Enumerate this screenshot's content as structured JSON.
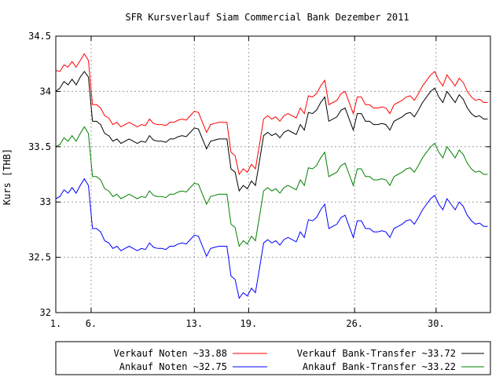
{
  "chart_data": {
    "type": "line",
    "title": "SFR Kursverlauf Siam Commercial Bank Dezember 2011",
    "xlabel": "",
    "ylabel": "Kurs [THB]",
    "xlim": [
      1,
      33
    ],
    "ylim": [
      32,
      34.5
    ],
    "grid": true,
    "legend_position": "bottom",
    "x_ticks": [
      {
        "value": 1,
        "label": "1."
      },
      {
        "value": 3.6,
        "label": "6."
      },
      {
        "value": 11.2,
        "label": "13."
      },
      {
        "value": 15.2,
        "label": "19."
      },
      {
        "value": 23.0,
        "label": "26."
      },
      {
        "value": 29.0,
        "label": "30."
      }
    ],
    "y_ticks": [
      {
        "value": 32,
        "label": "32"
      },
      {
        "value": 32.5,
        "label": "32.5"
      },
      {
        "value": 33,
        "label": "33"
      },
      {
        "value": 33.5,
        "label": "33.5"
      },
      {
        "value": 34,
        "label": "34"
      },
      {
        "value": 34.5,
        "label": "34.5"
      }
    ],
    "x": [
      1,
      1.3,
      1.6,
      1.9,
      2.2,
      2.5,
      2.8,
      3.1,
      3.4,
      3.7,
      4.0,
      4.3,
      4.6,
      4.9,
      5.2,
      5.5,
      5.8,
      6.1,
      6.4,
      6.7,
      7.0,
      7.3,
      7.6,
      7.9,
      8.2,
      8.5,
      8.8,
      9.1,
      9.4,
      9.7,
      10.0,
      10.3,
      10.6,
      10.9,
      11.2,
      11.5,
      11.8,
      12.1,
      12.4,
      12.7,
      13.0,
      13.3,
      13.6,
      13.9,
      14.2,
      14.5,
      14.8,
      15.1,
      15.4,
      15.7,
      16.0,
      16.3,
      16.6,
      16.9,
      17.2,
      17.5,
      17.8,
      18.1,
      18.4,
      18.7,
      19.0,
      19.3,
      19.6,
      19.9,
      20.2,
      20.5,
      20.8,
      21.1,
      21.4,
      21.7,
      22.0,
      22.3,
      22.6,
      22.9,
      23.2,
      23.5,
      23.8,
      24.1,
      24.4,
      24.7,
      25.0,
      25.3,
      25.6,
      25.9,
      26.2,
      26.5,
      26.8,
      27.1,
      27.4,
      27.7,
      28.0,
      28.3,
      28.6,
      28.9,
      29.2,
      29.5,
      29.8,
      30.1,
      30.4,
      30.7,
      31.0,
      31.3,
      31.6,
      31.9,
      32.2,
      32.5,
      32.8
    ],
    "series": [
      {
        "name": "Verkauf Noten ~33.88",
        "color": "#ff0000",
        "values": [
          34.19,
          34.18,
          34.24,
          34.22,
          34.27,
          34.22,
          34.28,
          34.34,
          34.28,
          33.88,
          33.88,
          33.85,
          33.78,
          33.76,
          33.7,
          33.72,
          33.68,
          33.7,
          33.72,
          33.7,
          33.68,
          33.7,
          33.69,
          33.75,
          33.71,
          33.7,
          33.7,
          33.69,
          33.72,
          33.72,
          33.74,
          33.75,
          33.74,
          33.78,
          33.82,
          33.81,
          33.72,
          33.63,
          33.7,
          33.71,
          33.72,
          33.72,
          33.72,
          33.45,
          33.42,
          33.25,
          33.3,
          33.27,
          33.34,
          33.3,
          33.52,
          33.75,
          33.78,
          33.75,
          33.77,
          33.73,
          33.78,
          33.8,
          33.78,
          33.76,
          33.85,
          33.8,
          33.96,
          33.95,
          33.98,
          34.05,
          34.1,
          33.88,
          33.9,
          33.92,
          33.98,
          34.0,
          33.9,
          33.8,
          33.95,
          33.95,
          33.88,
          33.88,
          33.85,
          33.85,
          33.86,
          33.85,
          33.8,
          33.88,
          33.9,
          33.92,
          33.95,
          33.96,
          33.92,
          33.98,
          34.05,
          34.1,
          34.15,
          34.18,
          34.1,
          34.05,
          34.15,
          34.1,
          34.05,
          34.12,
          34.08,
          34.0,
          33.95,
          33.92,
          33.93,
          33.9,
          33.9
        ]
      },
      {
        "name": "Verkauf Bank-Transfer ~33.72",
        "color": "#000000",
        "values": [
          34.0,
          34.03,
          34.09,
          34.06,
          34.11,
          34.06,
          34.13,
          34.18,
          34.13,
          33.73,
          33.73,
          33.7,
          33.62,
          33.6,
          33.55,
          33.57,
          33.53,
          33.55,
          33.57,
          33.55,
          33.53,
          33.55,
          33.54,
          33.6,
          33.56,
          33.55,
          33.55,
          33.54,
          33.57,
          33.57,
          33.59,
          33.6,
          33.59,
          33.63,
          33.67,
          33.66,
          33.57,
          33.48,
          33.55,
          33.56,
          33.57,
          33.57,
          33.57,
          33.3,
          33.27,
          33.1,
          33.15,
          33.12,
          33.19,
          33.15,
          33.37,
          33.6,
          33.63,
          33.6,
          33.62,
          33.58,
          33.63,
          33.65,
          33.63,
          33.61,
          33.7,
          33.65,
          33.81,
          33.8,
          33.83,
          33.9,
          33.95,
          33.73,
          33.75,
          33.77,
          33.83,
          33.85,
          33.75,
          33.65,
          33.8,
          33.8,
          33.73,
          33.73,
          33.7,
          33.7,
          33.71,
          33.7,
          33.65,
          33.73,
          33.75,
          33.77,
          33.8,
          33.81,
          33.77,
          33.83,
          33.9,
          33.95,
          34.0,
          34.03,
          33.95,
          33.9,
          34.0,
          33.95,
          33.9,
          33.97,
          33.93,
          33.85,
          33.8,
          33.77,
          33.78,
          33.75,
          33.75
        ]
      },
      {
        "name": "Ankauf Bank-Transfer ~33.22",
        "color": "#008000",
        "values": [
          33.5,
          33.52,
          33.58,
          33.55,
          33.6,
          33.55,
          33.62,
          33.68,
          33.62,
          33.23,
          33.23,
          33.2,
          33.12,
          33.1,
          33.05,
          33.07,
          33.03,
          33.05,
          33.07,
          33.05,
          33.03,
          33.05,
          33.04,
          33.1,
          33.06,
          33.05,
          33.05,
          33.04,
          33.07,
          33.07,
          33.09,
          33.1,
          33.09,
          33.13,
          33.17,
          33.16,
          33.07,
          32.98,
          33.05,
          33.06,
          33.07,
          33.07,
          33.07,
          32.8,
          32.77,
          32.6,
          32.65,
          32.62,
          32.69,
          32.65,
          32.87,
          33.1,
          33.13,
          33.1,
          33.12,
          33.08,
          33.13,
          33.15,
          33.13,
          33.11,
          33.2,
          33.15,
          33.31,
          33.3,
          33.33,
          33.4,
          33.45,
          33.23,
          33.25,
          33.27,
          33.33,
          33.35,
          33.25,
          33.15,
          33.3,
          33.3,
          33.23,
          33.23,
          33.2,
          33.2,
          33.21,
          33.2,
          33.15,
          33.23,
          33.25,
          33.27,
          33.3,
          33.31,
          33.27,
          33.33,
          33.4,
          33.45,
          33.5,
          33.53,
          33.45,
          33.4,
          33.5,
          33.45,
          33.4,
          33.47,
          33.43,
          33.35,
          33.3,
          33.27,
          33.28,
          33.25,
          33.25
        ]
      },
      {
        "name": "Ankauf Noten ~32.75",
        "color": "#0000ff",
        "values": [
          33.03,
          33.05,
          33.11,
          33.08,
          33.13,
          33.08,
          33.15,
          33.21,
          33.15,
          32.76,
          32.76,
          32.73,
          32.65,
          32.63,
          32.58,
          32.6,
          32.56,
          32.58,
          32.6,
          32.58,
          32.56,
          32.58,
          32.57,
          32.63,
          32.59,
          32.58,
          32.58,
          32.57,
          32.6,
          32.6,
          32.62,
          32.63,
          32.62,
          32.66,
          32.7,
          32.69,
          32.6,
          32.51,
          32.58,
          32.59,
          32.6,
          32.6,
          32.6,
          32.33,
          32.3,
          32.13,
          32.18,
          32.15,
          32.22,
          32.18,
          32.4,
          32.63,
          32.66,
          32.63,
          32.65,
          32.61,
          32.66,
          32.68,
          32.66,
          32.64,
          32.73,
          32.68,
          32.84,
          32.83,
          32.86,
          32.93,
          32.98,
          32.76,
          32.78,
          32.8,
          32.86,
          32.88,
          32.78,
          32.68,
          32.83,
          32.83,
          32.76,
          32.76,
          32.73,
          32.73,
          32.74,
          32.73,
          32.68,
          32.76,
          32.78,
          32.8,
          32.83,
          32.84,
          32.8,
          32.86,
          32.93,
          32.98,
          33.03,
          33.06,
          32.98,
          32.93,
          33.03,
          32.98,
          32.93,
          33.0,
          32.96,
          32.88,
          32.83,
          32.8,
          32.81,
          32.78,
          32.78
        ]
      }
    ],
    "legend_order": [
      0,
      1,
      3,
      2
    ]
  }
}
